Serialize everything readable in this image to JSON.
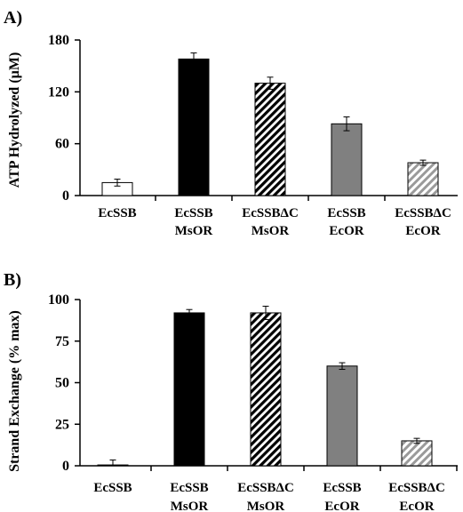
{
  "chart_data": [
    {
      "type": "bar",
      "panel_label": "A)",
      "ylabel": "ATP Hydrolyzed (µM)",
      "xlabel": "",
      "ylim": [
        0,
        180
      ],
      "yticks": [
        "0",
        "60",
        "120",
        "180"
      ],
      "ytick_values": [
        0,
        60,
        120,
        180
      ],
      "grid": false,
      "categories": [
        {
          "line1": "EcSSB",
          "line2": ""
        },
        {
          "line1": "EcSSB",
          "line2": "MsOR"
        },
        {
          "line1": "EcSSBΔC",
          "line2": "MsOR"
        },
        {
          "line1": "EcSSB",
          "line2": "EcOR"
        },
        {
          "line1": "EcSSBΔC",
          "line2": "EcOR"
        }
      ],
      "values": [
        15,
        158,
        130,
        83,
        38
      ],
      "errors": [
        4,
        7,
        7,
        8,
        3
      ],
      "fills": [
        "#ffffff",
        "#000000",
        "hatch-black",
        "#808080",
        "hatch-gray"
      ]
    },
    {
      "type": "bar",
      "panel_label": "B)",
      "ylabel": "Strand Exchange (% max)",
      "xlabel": "",
      "ylim": [
        0,
        100
      ],
      "yticks": [
        "0",
        "25",
        "50",
        "75",
        "100"
      ],
      "ytick_values": [
        0,
        25,
        50,
        75,
        100
      ],
      "grid": false,
      "categories": [
        {
          "line1": "EcSSB",
          "line2": ""
        },
        {
          "line1": "EcSSB",
          "line2": "MsOR"
        },
        {
          "line1": "EcSSBΔC",
          "line2": "MsOR"
        },
        {
          "line1": "EcSSB",
          "line2": "EcOR"
        },
        {
          "line1": "EcSSBΔC",
          "line2": "EcOR"
        }
      ],
      "values": [
        0.5,
        92,
        92,
        60,
        15
      ],
      "errors": [
        3,
        2,
        4,
        2,
        1.5
      ],
      "fills": [
        "#ffffff",
        "#000000",
        "hatch-black",
        "#808080",
        "hatch-gray"
      ]
    }
  ]
}
